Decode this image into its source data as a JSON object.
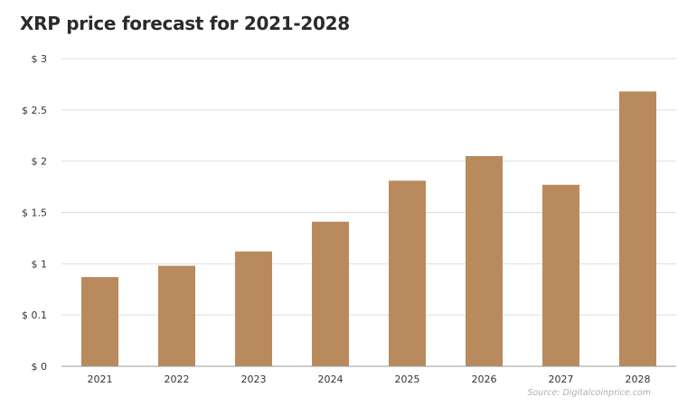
{
  "title": "XRP price forecast for 2021-2028",
  "source": "Source: Digitalcoinprice.com",
  "colors": {
    "bar": "#B98A5E",
    "grid": "#dddddd",
    "axis": "#999999",
    "text": "#333333"
  },
  "chart_data": {
    "type": "bar",
    "title": "XRP price forecast for 2021-2028",
    "xlabel": "",
    "ylabel": "",
    "grid": true,
    "categories": [
      "2021",
      "2022",
      "2023",
      "2024",
      "2025",
      "2026",
      "2027",
      "2028"
    ],
    "y_ticks": [
      "$ 0",
      "$ 0.1",
      "$ 1",
      "$ 1.5",
      "$ 2",
      "$ 2.5",
      "$ 3"
    ],
    "y_ticks_note": "tick labels as printed; the axis is evenly spaced per tick",
    "values": [
      0.87,
      0.98,
      1.12,
      1.41,
      1.81,
      2.05,
      1.77,
      2.68
    ],
    "ylim": [
      0,
      3
    ]
  }
}
